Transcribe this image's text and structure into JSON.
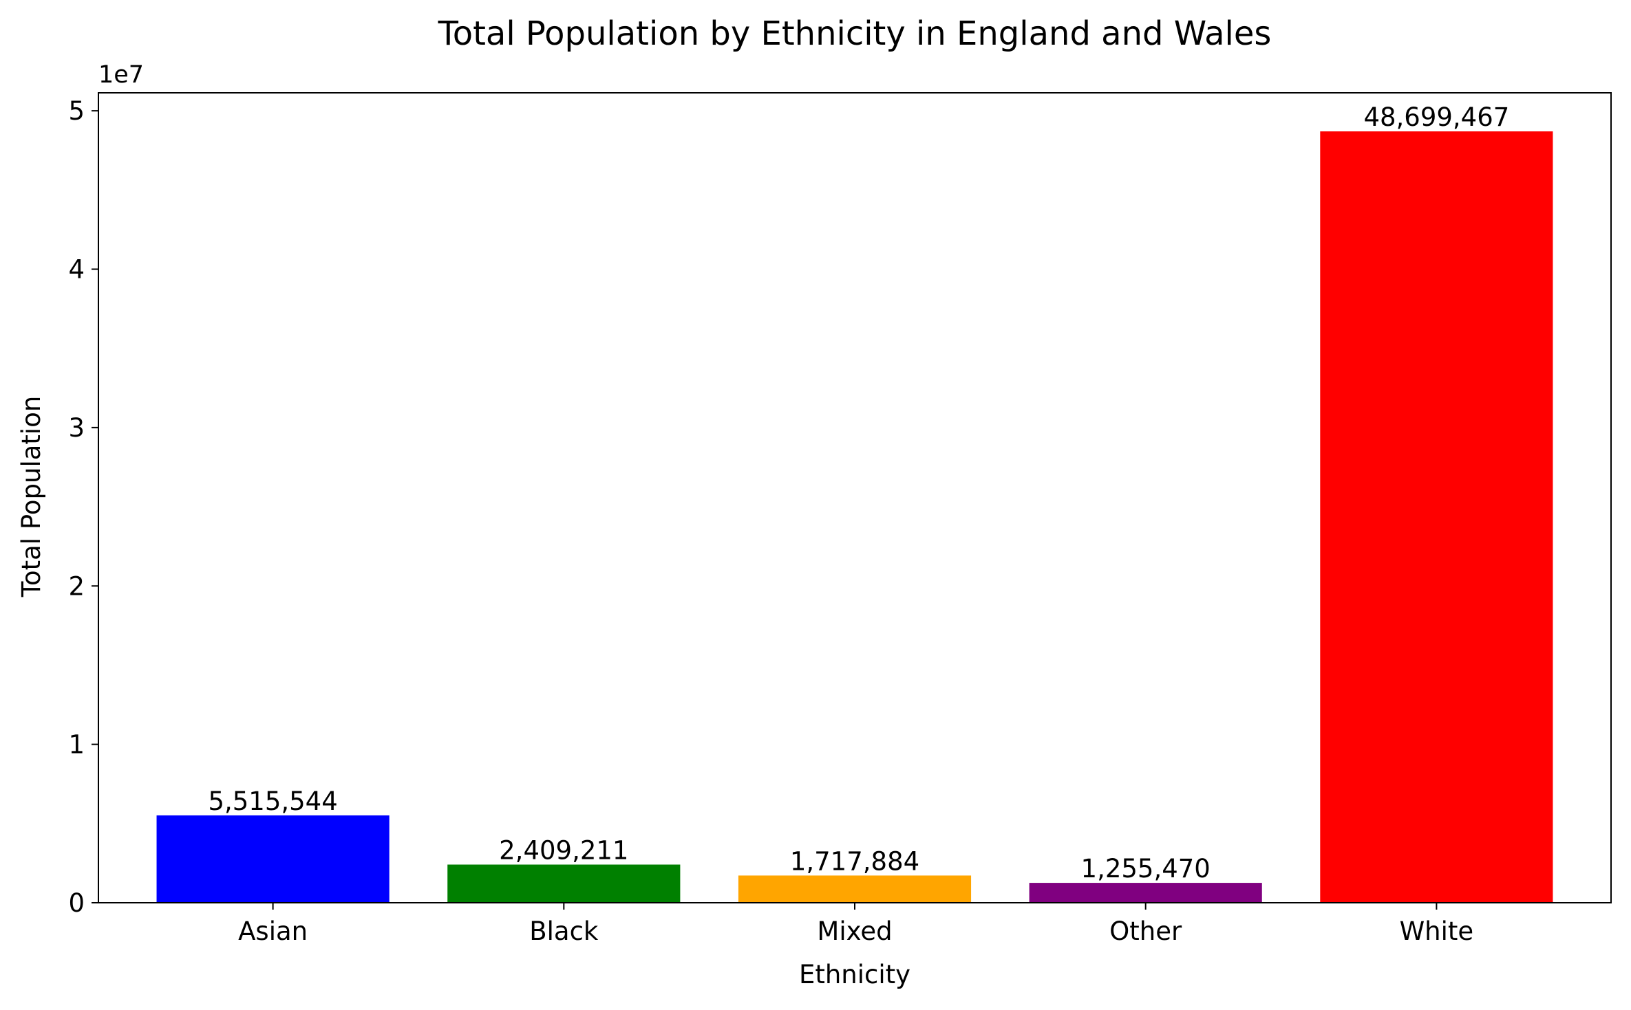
{
  "chart_data": {
    "type": "bar",
    "title": "Total Population by Ethnicity in England and Wales",
    "xlabel": "Ethnicity",
    "ylabel": "Total Population",
    "offset_label": "1e7",
    "categories": [
      "Asian",
      "Black",
      "Mixed",
      "Other",
      "White"
    ],
    "values": [
      5515544,
      2409211,
      1717884,
      1255470,
      48699467
    ],
    "value_labels": [
      "5,515,544",
      "2,409,211",
      "1,717,884",
      "1,255,470",
      "48,699,467"
    ],
    "colors": [
      "#0000ff",
      "#008000",
      "#ffa500",
      "#800080",
      "#ff0000"
    ],
    "ylim": [
      0,
      51134440
    ],
    "yticks": [
      0,
      10000000,
      20000000,
      30000000,
      40000000,
      50000000
    ],
    "ytick_labels": [
      "0",
      "1",
      "2",
      "3",
      "4",
      "5"
    ],
    "grid": false,
    "legend": "none"
  }
}
